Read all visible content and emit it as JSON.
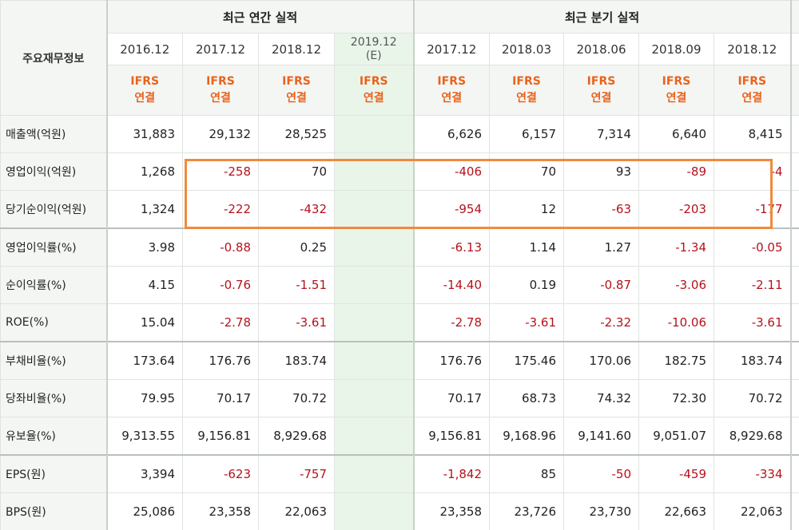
{
  "table": {
    "corner_label": "주요재무정보",
    "groups": {
      "annual": "최근 연간 실적",
      "quarterly": "최근 분기 실적"
    },
    "annual_periods": [
      "2016.12",
      "2017.12",
      "2018.12"
    ],
    "estimate_period": {
      "date": "2019.12",
      "suffix": "(E)"
    },
    "quarterly_periods": [
      "2017.12",
      "2018.03",
      "2018.06",
      "2018.09",
      "2018.12"
    ],
    "cutoff_period": "2",
    "basis": {
      "line1": "IFRS",
      "line2": "연결"
    },
    "rows": [
      {
        "label": "매출액(억원)",
        "annual": [
          "31,883",
          "29,132",
          "28,525"
        ],
        "quarterly": [
          "6,626",
          "6,157",
          "7,314",
          "6,640",
          "8,415"
        ]
      },
      {
        "label": "영업이익(억원)",
        "annual": [
          "1,268",
          "-258",
          "70"
        ],
        "quarterly": [
          "-406",
          "70",
          "93",
          "-89",
          "-4"
        ]
      },
      {
        "label": "당기순이익(억원)",
        "annual": [
          "1,324",
          "-222",
          "-432"
        ],
        "quarterly": [
          "-954",
          "12",
          "-63",
          "-203",
          "-177"
        ]
      },
      {
        "label": "영업이익률(%)",
        "annual": [
          "3.98",
          "-0.88",
          "0.25"
        ],
        "quarterly": [
          "-6.13",
          "1.14",
          "1.27",
          "-1.34",
          "-0.05"
        ]
      },
      {
        "label": "순이익률(%)",
        "annual": [
          "4.15",
          "-0.76",
          "-1.51"
        ],
        "quarterly": [
          "-14.40",
          "0.19",
          "-0.87",
          "-3.06",
          "-2.11"
        ]
      },
      {
        "label": "ROE(%)",
        "annual": [
          "15.04",
          "-2.78",
          "-3.61"
        ],
        "quarterly": [
          "-2.78",
          "-3.61",
          "-2.32",
          "-10.06",
          "-3.61"
        ]
      },
      {
        "label": "부채비율(%)",
        "annual": [
          "173.64",
          "176.76",
          "183.74"
        ],
        "quarterly": [
          "176.76",
          "175.46",
          "170.06",
          "182.75",
          "183.74"
        ]
      },
      {
        "label": "당좌비율(%)",
        "annual": [
          "79.95",
          "70.17",
          "70.72"
        ],
        "quarterly": [
          "70.17",
          "68.73",
          "74.32",
          "72.30",
          "70.72"
        ]
      },
      {
        "label": "유보율(%)",
        "annual": [
          "9,313.55",
          "9,156.81",
          "8,929.68"
        ],
        "quarterly": [
          "9,156.81",
          "9,168.96",
          "9,141.60",
          "9,051.07",
          "8,929.68"
        ]
      },
      {
        "label": "EPS(원)",
        "annual": [
          "3,394",
          "-623",
          "-757"
        ],
        "quarterly": [
          "-1,842",
          "85",
          "-50",
          "-459",
          "-334"
        ]
      },
      {
        "label": "BPS(원)",
        "annual": [
          "25,086",
          "23,358",
          "22,063"
        ],
        "quarterly": [
          "23,358",
          "23,726",
          "23,730",
          "22,663",
          "22,063"
        ]
      }
    ]
  },
  "colors": {
    "negative": "#b5121b",
    "basis": "#e9631c",
    "estimate_bg": "#eaf5ea",
    "highlight": "#f08a3c"
  }
}
